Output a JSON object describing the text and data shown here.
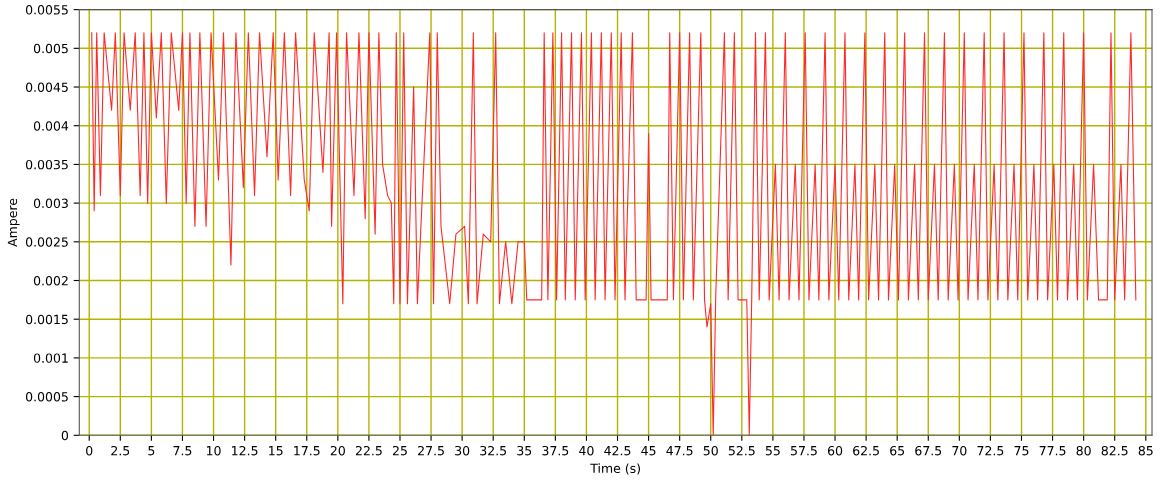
{
  "chart_data": {
    "type": "line",
    "xlabel": "Time (s)",
    "ylabel": "Ampere",
    "xlim": [
      -0.8,
      85.5
    ],
    "ylim": [
      0,
      0.0055
    ],
    "xticks": [
      0,
      2.5,
      5,
      7.5,
      10,
      12.5,
      15,
      17.5,
      20,
      22.5,
      25,
      27.5,
      30,
      32.5,
      35,
      37.5,
      40,
      42.5,
      45,
      47.5,
      50,
      52.5,
      55,
      57.5,
      60,
      62.5,
      65,
      67.5,
      70,
      72.5,
      75,
      77.5,
      80,
      82.5,
      85
    ],
    "yticks": [
      0,
      0.0005,
      0.001,
      0.0015,
      0.002,
      0.0025,
      0.003,
      0.0035,
      0.004,
      0.0045,
      0.005,
      0.0055
    ],
    "grid": true,
    "marker": "none",
    "line_style": "solid",
    "series": [
      {
        "color": "#ff2a2a",
        "x": [
          0.2,
          0.4,
          0.6,
          0.9,
          1.2,
          1.8,
          2.1,
          2.5,
          2.8,
          3.3,
          3.7,
          4.1,
          4.4,
          4.7,
          5.0,
          5.4,
          5.8,
          6.2,
          6.6,
          7.2,
          7.5,
          7.8,
          8.1,
          8.5,
          8.9,
          9.4,
          9.8,
          10.4,
          10.8,
          11.4,
          11.8,
          12.4,
          12.8,
          13.3,
          13.7,
          14.3,
          14.8,
          15.2,
          15.7,
          16.2,
          16.6,
          17.3,
          17.7,
          18.1,
          18.8,
          19.3,
          19.5,
          19.9,
          20.4,
          20.7,
          21.3,
          21.7,
          22.2,
          22.5,
          23.0,
          23.3,
          23.6,
          24.0,
          24.3,
          24.5,
          24.7,
          25.0,
          25.3,
          25.6,
          26.1,
          26.4,
          27.4,
          27.7,
          28.0,
          28.3,
          29.0,
          29.5,
          30.2,
          30.5,
          30.9,
          31.2,
          31.7,
          32.3,
          32.7,
          33.0,
          33.5,
          34.0,
          34.5,
          35.0,
          35.2,
          36.4,
          36.6,
          36.9,
          37.3,
          37.6,
          38.0,
          38.3,
          38.8,
          39.1,
          39.6,
          39.9,
          40.4,
          40.7,
          41.2,
          41.5,
          42.0,
          42.3,
          42.8,
          43.1,
          43.7,
          44.0,
          44.8,
          45.0,
          45.2,
          46.5,
          46.7,
          47.0,
          47.5,
          47.8,
          48.3,
          48.6,
          49.2,
          49.5,
          49.7,
          50.0,
          50.2,
          50.4,
          51.1,
          51.4,
          51.9,
          52.2,
          52.9,
          53.1,
          53.3,
          53.6,
          53.9,
          54.4,
          54.7,
          55.2,
          55.5,
          56.0,
          56.3,
          56.8,
          57.1,
          57.6,
          57.9,
          58.4,
          58.7,
          59.2,
          59.5,
          60.0,
          60.3,
          60.8,
          61.1,
          61.6,
          61.9,
          62.4,
          62.7,
          63.2,
          63.5,
          64.0,
          64.3,
          64.8,
          65.1,
          65.6,
          65.9,
          66.4,
          66.7,
          67.2,
          67.5,
          68.0,
          68.3,
          68.8,
          69.1,
          69.6,
          69.9,
          70.4,
          70.7,
          71.2,
          71.5,
          72.0,
          72.3,
          72.8,
          73.1,
          73.6,
          73.9,
          74.4,
          74.7,
          75.2,
          75.5,
          76.0,
          76.3,
          76.8,
          77.1,
          77.6,
          77.9,
          78.4,
          78.7,
          79.2,
          79.5,
          80.0,
          80.3,
          80.8,
          81.2,
          81.9,
          82.2,
          82.5,
          83.0,
          83.3,
          83.8,
          84.2
        ],
        "values": [
          0.0052,
          0.0029,
          0.0052,
          0.0031,
          0.0052,
          0.0042,
          0.0052,
          0.0031,
          0.0052,
          0.0042,
          0.0052,
          0.0031,
          0.0052,
          0.003,
          0.0052,
          0.0041,
          0.0052,
          0.003,
          0.0052,
          0.0042,
          0.0052,
          0.003,
          0.0052,
          0.0027,
          0.0052,
          0.0027,
          0.0052,
          0.0033,
          0.0052,
          0.0022,
          0.0052,
          0.0032,
          0.0052,
          0.0031,
          0.0052,
          0.0036,
          0.0052,
          0.0033,
          0.0052,
          0.0031,
          0.0052,
          0.0033,
          0.0029,
          0.0052,
          0.0034,
          0.0052,
          0.0027,
          0.0052,
          0.0017,
          0.0052,
          0.0031,
          0.0052,
          0.0028,
          0.0052,
          0.0026,
          0.0052,
          0.0035,
          0.0031,
          0.003,
          0.0017,
          0.0052,
          0.0017,
          0.0052,
          0.0017,
          0.0045,
          0.0017,
          0.0052,
          0.0017,
          0.0052,
          0.0027,
          0.0017,
          0.0026,
          0.0027,
          0.0017,
          0.0052,
          0.0017,
          0.0026,
          0.0025,
          0.0052,
          0.0017,
          0.0025,
          0.0017,
          0.0025,
          0.0025,
          0.00175,
          0.00175,
          0.0052,
          0.00175,
          0.0052,
          0.00175,
          0.0052,
          0.00175,
          0.0052,
          0.00175,
          0.0052,
          0.00175,
          0.0052,
          0.00175,
          0.0052,
          0.00175,
          0.0052,
          0.00175,
          0.0052,
          0.00175,
          0.0052,
          0.00175,
          0.00175,
          0.0039,
          0.00175,
          0.00175,
          0.0052,
          0.00175,
          0.0052,
          0.00175,
          0.0052,
          0.00175,
          0.0052,
          0.00175,
          0.0014,
          0.0017,
          0.0,
          0.0018,
          0.0052,
          0.00175,
          0.0052,
          0.00175,
          0.00175,
          0.0,
          0.0018,
          0.0052,
          0.00175,
          0.0052,
          0.00175,
          0.0035,
          0.00175,
          0.0052,
          0.00175,
          0.0035,
          0.00175,
          0.0052,
          0.00175,
          0.0035,
          0.00175,
          0.0052,
          0.00175,
          0.0035,
          0.00175,
          0.0052,
          0.00175,
          0.0035,
          0.00175,
          0.0052,
          0.00175,
          0.0035,
          0.00175,
          0.0052,
          0.00175,
          0.0035,
          0.00175,
          0.0052,
          0.00175,
          0.0035,
          0.00175,
          0.0052,
          0.00175,
          0.0035,
          0.00175,
          0.0052,
          0.00175,
          0.0035,
          0.00175,
          0.0052,
          0.00175,
          0.0035,
          0.00175,
          0.0052,
          0.00175,
          0.0035,
          0.00175,
          0.0052,
          0.00175,
          0.0035,
          0.00175,
          0.0052,
          0.00175,
          0.0035,
          0.00175,
          0.0052,
          0.00175,
          0.0035,
          0.00175,
          0.0052,
          0.00175,
          0.0035,
          0.00175,
          0.0052,
          0.00175,
          0.0035,
          0.00175,
          0.00175,
          0.0052,
          0.00175,
          0.0035,
          0.00175,
          0.0052,
          0.00175
        ]
      }
    ]
  }
}
